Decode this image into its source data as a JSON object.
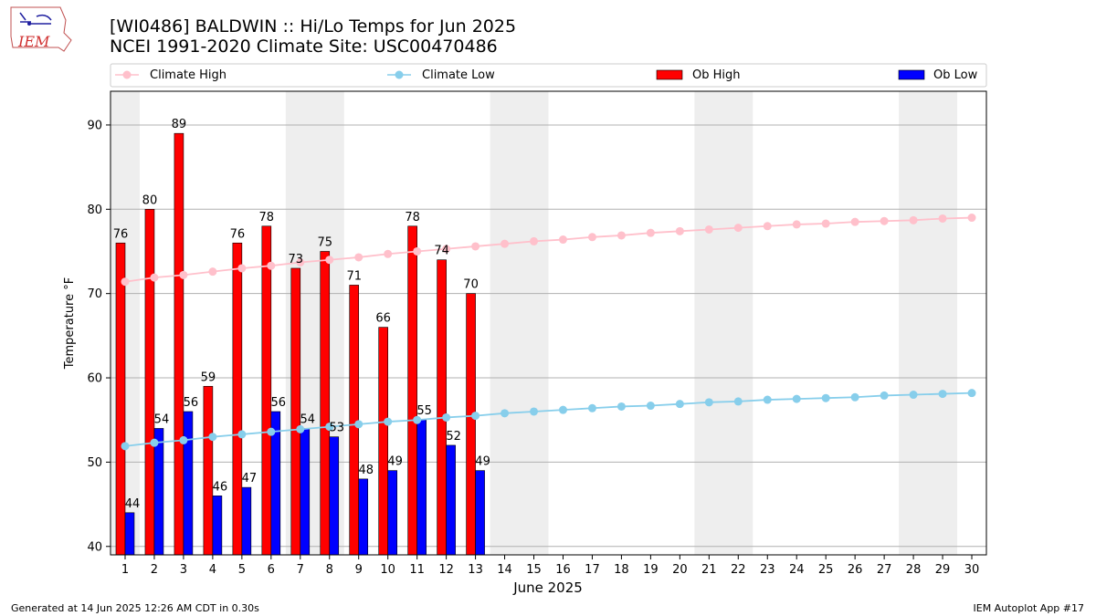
{
  "header": {
    "title_line1": "[WI0486] BALDWIN :: Hi/Lo Temps for Jun 2025",
    "title_line2": "NCEI 1991-2020 Climate Site: USC00470486"
  },
  "logo": {
    "text": "IEM"
  },
  "footer": {
    "left": "Generated at 14 Jun 2025 12:26 AM CDT in 0.30s",
    "right": "IEM Autoplot App #17"
  },
  "colors": {
    "ob_high": "#ff0000",
    "ob_low": "#0000ff",
    "climate_high": "#ffc0cb",
    "climate_low": "#87ceeb",
    "weekend_band": "#eeeeee",
    "grid": "#b0b0b0"
  },
  "chart_data": {
    "type": "bar",
    "xlabel": "June 2025",
    "ylabel": "Temperature °F",
    "ylim": [
      39,
      94
    ],
    "yticks": [
      40,
      50,
      60,
      70,
      80,
      90
    ],
    "grid": "horizontal",
    "legend_position": "top",
    "days": [
      1,
      2,
      3,
      4,
      5,
      6,
      7,
      8,
      9,
      10,
      11,
      12,
      13,
      14,
      15,
      16,
      17,
      18,
      19,
      20,
      21,
      22,
      23,
      24,
      25,
      26,
      27,
      28,
      29,
      30
    ],
    "weekend_bands": [
      [
        1,
        1
      ],
      [
        7,
        8
      ],
      [
        14,
        15
      ],
      [
        21,
        22
      ],
      [
        28,
        29
      ]
    ],
    "series": [
      {
        "name": "Climate High",
        "kind": "line",
        "values": [
          71.4,
          71.9,
          72.2,
          72.6,
          73.0,
          73.3,
          73.7,
          74.0,
          74.3,
          74.7,
          75.0,
          75.3,
          75.6,
          75.9,
          76.2,
          76.4,
          76.7,
          76.9,
          77.2,
          77.4,
          77.6,
          77.8,
          78.0,
          78.2,
          78.3,
          78.5,
          78.6,
          78.7,
          78.9,
          79.0
        ]
      },
      {
        "name": "Climate Low",
        "kind": "line",
        "values": [
          51.9,
          52.3,
          52.6,
          53.0,
          53.3,
          53.6,
          53.9,
          54.2,
          54.5,
          54.8,
          55.0,
          55.3,
          55.5,
          55.8,
          56.0,
          56.2,
          56.4,
          56.6,
          56.7,
          56.9,
          57.1,
          57.2,
          57.4,
          57.5,
          57.6,
          57.7,
          57.9,
          58.0,
          58.1,
          58.2
        ]
      },
      {
        "name": "Ob High",
        "kind": "bar",
        "values": [
          76,
          80,
          89,
          59,
          76,
          78,
          73,
          75,
          71,
          66,
          78,
          74,
          70
        ]
      },
      {
        "name": "Ob Low",
        "kind": "bar",
        "values": [
          44,
          54,
          56,
          46,
          47,
          56,
          54,
          53,
          48,
          49,
          55,
          52,
          49
        ]
      }
    ]
  }
}
